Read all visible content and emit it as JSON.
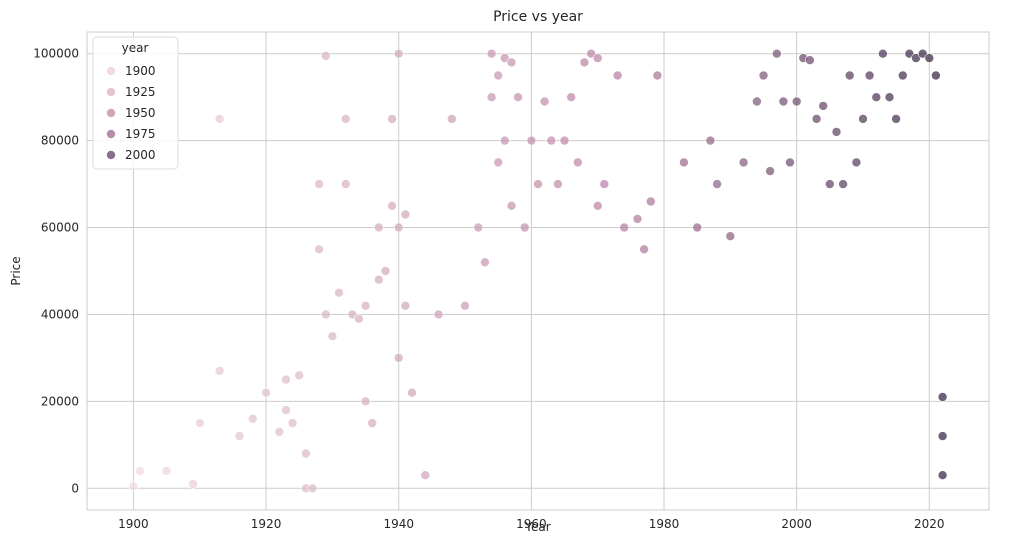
{
  "chart_data": {
    "type": "scatter",
    "title": "Price vs year",
    "xlabel": "Year",
    "ylabel": "Price",
    "xlim": [
      1893,
      2029
    ],
    "ylim": [
      -5000,
      105000
    ],
    "xticks": [
      1900,
      1920,
      1940,
      1960,
      1980,
      2000,
      2020
    ],
    "yticks": [
      0,
      20000,
      40000,
      60000,
      80000,
      100000
    ],
    "grid": true,
    "legend": {
      "title": "year",
      "placement": "top-left",
      "entries": [
        {
          "label": "1900",
          "color": "#ecd2d6"
        },
        {
          "label": "1925",
          "color": "#e0b5bf"
        },
        {
          "label": "1950",
          "color": "#c88ea5"
        },
        {
          "label": "1975",
          "color": "#a57096"
        },
        {
          "label": "2000",
          "color": "#6e4a72"
        }
      ]
    },
    "hue_range": [
      1900,
      2022
    ],
    "colors": {
      "low": "#efd9dc",
      "mid": "#b77ca0",
      "high": "#2d1e3e"
    },
    "points": [
      [
        1900,
        500
      ],
      [
        1901,
        4000
      ],
      [
        1905,
        4000
      ],
      [
        1909,
        1000
      ],
      [
        1910,
        15000
      ],
      [
        1913,
        85000
      ],
      [
        1913,
        27000
      ],
      [
        1916,
        12000
      ],
      [
        1918,
        16000
      ],
      [
        1920,
        22000
      ],
      [
        1922,
        13000
      ],
      [
        1923,
        18000
      ],
      [
        1923,
        25000
      ],
      [
        1924,
        15000
      ],
      [
        1925,
        26000
      ],
      [
        1926,
        8000
      ],
      [
        1926,
        0
      ],
      [
        1927,
        0
      ],
      [
        1928,
        55000
      ],
      [
        1928,
        70000
      ],
      [
        1929,
        99500
      ],
      [
        1929,
        40000
      ],
      [
        1930,
        35000
      ],
      [
        1931,
        45000
      ],
      [
        1932,
        85000
      ],
      [
        1932,
        70000
      ],
      [
        1933,
        40000
      ],
      [
        1934,
        39000
      ],
      [
        1935,
        20000
      ],
      [
        1935,
        42000
      ],
      [
        1936,
        15000
      ],
      [
        1937,
        60000
      ],
      [
        1937,
        48000
      ],
      [
        1938,
        50000
      ],
      [
        1939,
        85000
      ],
      [
        1939,
        65000
      ],
      [
        1940,
        100000
      ],
      [
        1940,
        60000
      ],
      [
        1940,
        30000
      ],
      [
        1941,
        63000
      ],
      [
        1941,
        42000
      ],
      [
        1942,
        22000
      ],
      [
        1944,
        3000
      ],
      [
        1946,
        40000
      ],
      [
        1948,
        85000
      ],
      [
        1950,
        42000
      ],
      [
        1952,
        60000
      ],
      [
        1953,
        52000
      ],
      [
        1954,
        100000
      ],
      [
        1954,
        90000
      ],
      [
        1955,
        75000
      ],
      [
        1955,
        95000
      ],
      [
        1956,
        99000
      ],
      [
        1956,
        80000
      ],
      [
        1957,
        98000
      ],
      [
        1957,
        65000
      ],
      [
        1958,
        90000
      ],
      [
        1959,
        60000
      ],
      [
        1960,
        80000
      ],
      [
        1961,
        70000
      ],
      [
        1962,
        89000
      ],
      [
        1963,
        80000
      ],
      [
        1964,
        70000
      ],
      [
        1965,
        80000
      ],
      [
        1966,
        90000
      ],
      [
        1967,
        75000
      ],
      [
        1968,
        98000
      ],
      [
        1969,
        100000
      ],
      [
        1970,
        99000
      ],
      [
        1970,
        65000
      ],
      [
        1971,
        70000
      ],
      [
        1973,
        95000
      ],
      [
        1974,
        60000
      ],
      [
        1976,
        62000
      ],
      [
        1977,
        55000
      ],
      [
        1978,
        66000
      ],
      [
        1979,
        95000
      ],
      [
        1983,
        75000
      ],
      [
        1985,
        60000
      ],
      [
        1987,
        80000
      ],
      [
        1988,
        70000
      ],
      [
        1990,
        58000
      ],
      [
        1992,
        75000
      ],
      [
        1994,
        89000
      ],
      [
        1995,
        95000
      ],
      [
        1996,
        73000
      ],
      [
        1997,
        100000
      ],
      [
        1998,
        89000
      ],
      [
        1999,
        75000
      ],
      [
        2000,
        89000
      ],
      [
        2001,
        99000
      ],
      [
        2002,
        98500
      ],
      [
        2003,
        85000
      ],
      [
        2004,
        88000
      ],
      [
        2005,
        70000
      ],
      [
        2006,
        82000
      ],
      [
        2007,
        70000
      ],
      [
        2008,
        95000
      ],
      [
        2009,
        75000
      ],
      [
        2010,
        85000
      ],
      [
        2011,
        95000
      ],
      [
        2012,
        90000
      ],
      [
        2013,
        100000
      ],
      [
        2014,
        90000
      ],
      [
        2015,
        85000
      ],
      [
        2016,
        95000
      ],
      [
        2017,
        100000
      ],
      [
        2018,
        99000
      ],
      [
        2019,
        100000
      ],
      [
        2020,
        99000
      ],
      [
        2021,
        95000
      ],
      [
        2022,
        21000
      ],
      [
        2022,
        12000
      ],
      [
        2022,
        3000
      ]
    ]
  }
}
